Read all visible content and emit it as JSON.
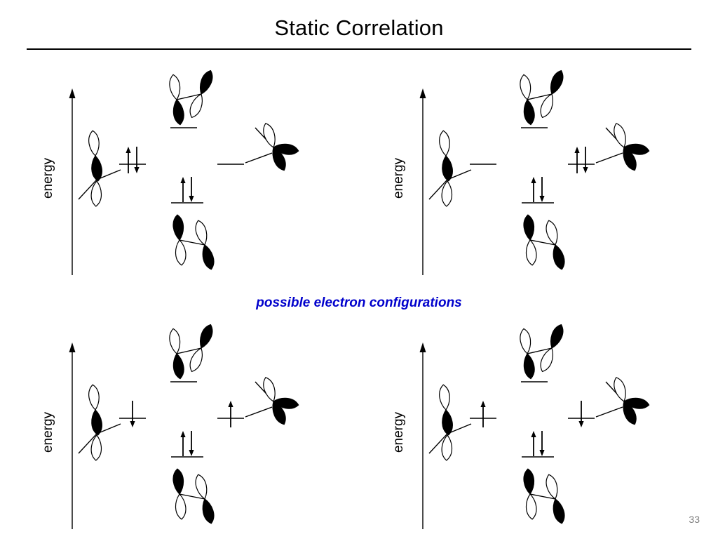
{
  "slide": {
    "title": "Static Correlation",
    "caption": "possible electron configurations",
    "axis_label": "energy",
    "page_number": "33"
  },
  "colors": {
    "caption_text": "#0000CC",
    "page_number": "#7F7F7F",
    "orbital_filled": "#000000",
    "orbital_empty": "#FFFFFF",
    "line": "#000000"
  },
  "panels": [
    {
      "name": "top-left",
      "levels": {
        "left": [
          "up",
          "down"
        ],
        "right": [],
        "antibonding": [],
        "bonding": [
          "up",
          "down"
        ]
      }
    },
    {
      "name": "top-right",
      "levels": {
        "left": [],
        "right": [
          "up",
          "down"
        ],
        "antibonding": [],
        "bonding": [
          "up",
          "down"
        ]
      }
    },
    {
      "name": "bottom-left",
      "levels": {
        "left": [
          "down"
        ],
        "right": [
          "up"
        ],
        "antibonding": [],
        "bonding": [
          "up",
          "down"
        ]
      }
    },
    {
      "name": "bottom-right",
      "levels": {
        "left": [
          "up"
        ],
        "right": [
          "down"
        ],
        "antibonding": [],
        "bonding": [
          "up",
          "down"
        ]
      }
    }
  ]
}
